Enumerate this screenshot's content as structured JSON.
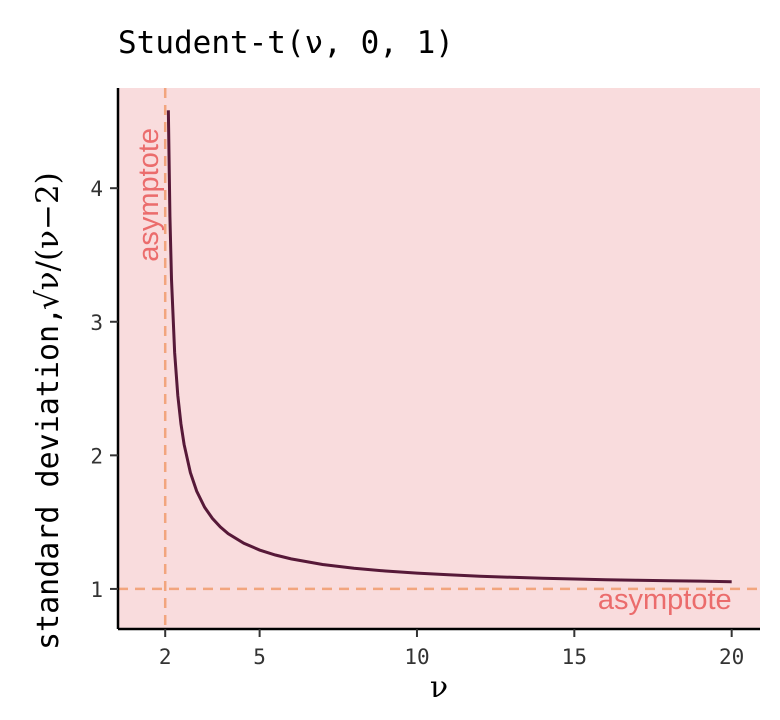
{
  "chart_data": {
    "type": "line",
    "title_main": "Student-t",
    "title_args": "(ν, 0, 1)",
    "xlabel": "ν",
    "ylabel_text": "standard deviation,",
    "ylabel_formula": "√ν/(ν−2)",
    "xlim": [
      0.5,
      20.9
    ],
    "ylim": [
      0.7,
      4.75
    ],
    "x_ticks": [
      2,
      5,
      10,
      15,
      20
    ],
    "x_tick_labels": [
      "2",
      "5",
      "10",
      "15",
      "20"
    ],
    "y_ticks": [
      1,
      2,
      3,
      4
    ],
    "y_tick_labels": [
      "1",
      "2",
      "3",
      "4"
    ],
    "grid": false,
    "function": "sqrt(nu/(nu-2))",
    "x_range": [
      2.1,
      20
    ],
    "series": [
      {
        "x": [
          2.1,
          2.15,
          2.2,
          2.3,
          2.4,
          2.5,
          2.6,
          2.8,
          3,
          3.25,
          3.5,
          3.75,
          4,
          4.5,
          5,
          5.5,
          6,
          7,
          8,
          9,
          10,
          11,
          12,
          13,
          14,
          15,
          16,
          17,
          18,
          19,
          20
        ],
        "y": [
          4.583,
          3.786,
          3.317,
          2.769,
          2.449,
          2.236,
          2.082,
          1.871,
          1.732,
          1.612,
          1.528,
          1.464,
          1.414,
          1.342,
          1.291,
          1.254,
          1.225,
          1.183,
          1.155,
          1.134,
          1.118,
          1.106,
          1.095,
          1.087,
          1.08,
          1.074,
          1.069,
          1.065,
          1.061,
          1.058,
          1.054
        ]
      }
    ],
    "asymptotes": [
      {
        "orientation": "vertical",
        "value": 2,
        "label": "asymptote"
      },
      {
        "orientation": "horizontal",
        "value": 1,
        "label": "asymptote"
      }
    ],
    "colors": {
      "panel_bg": "#f9dcdd",
      "curve": "#571938",
      "asymptote_line": "#f2a57e",
      "asymptote_label": "#eb6c6c",
      "axis": "#000000",
      "tick_label": "#333333"
    }
  }
}
